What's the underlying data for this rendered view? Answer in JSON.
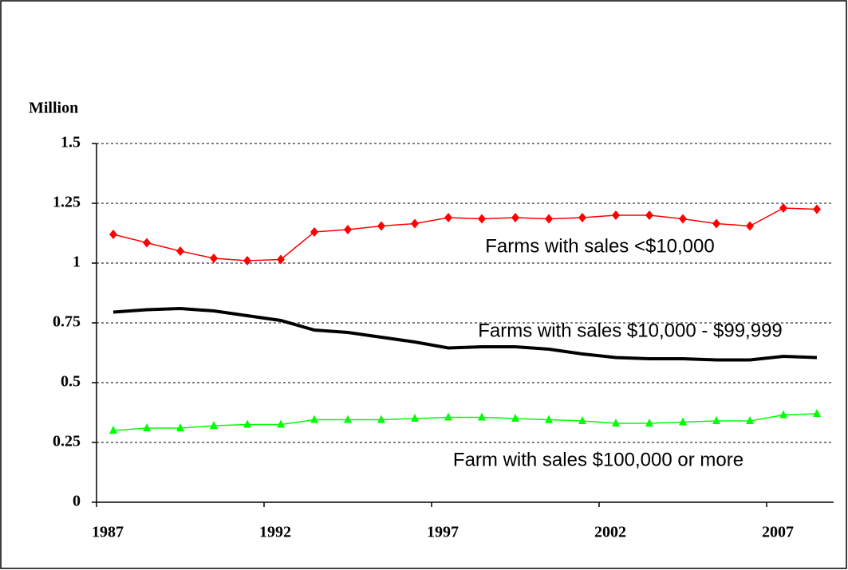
{
  "chart_data": {
    "type": "line",
    "y_axis_label": "Million",
    "categories": [
      "1987",
      null,
      null,
      null,
      null,
      "1992",
      null,
      null,
      null,
      null,
      "1997",
      null,
      null,
      null,
      null,
      "2002",
      null,
      null,
      null,
      null,
      "2007",
      null
    ],
    "ylim": [
      0,
      1.5
    ],
    "yticks": [
      0,
      0.25,
      0.5,
      0.75,
      1,
      1.25,
      1.5
    ],
    "grid": true,
    "series": [
      {
        "name": "Farms with sales <$10,000",
        "color": "#ff0000",
        "marker": "diamond",
        "values": [
          1.12,
          1.085,
          1.05,
          1.02,
          1.01,
          1.015,
          1.13,
          1.14,
          1.155,
          1.165,
          1.19,
          1.185,
          1.19,
          1.185,
          1.19,
          1.2,
          1.2,
          1.185,
          1.165,
          1.155,
          1.23,
          1.225
        ]
      },
      {
        "name": "Farms with sales $10,000 - $99,999",
        "color": "#000000",
        "marker": "none",
        "values": [
          0.795,
          0.805,
          0.81,
          0.8,
          0.78,
          0.76,
          0.72,
          0.71,
          0.69,
          0.67,
          0.645,
          0.65,
          0.65,
          0.64,
          0.62,
          0.605,
          0.6,
          0.6,
          0.595,
          0.595,
          0.61,
          0.605
        ]
      },
      {
        "name": "Farm with sales $100,000 or more",
        "color": "#00ff00",
        "marker": "triangle",
        "values": [
          0.3,
          0.31,
          0.31,
          0.32,
          0.325,
          0.325,
          0.345,
          0.345,
          0.345,
          0.35,
          0.355,
          0.355,
          0.35,
          0.345,
          0.34,
          0.33,
          0.33,
          0.335,
          0.34,
          0.34,
          0.365,
          0.37
        ]
      }
    ]
  }
}
